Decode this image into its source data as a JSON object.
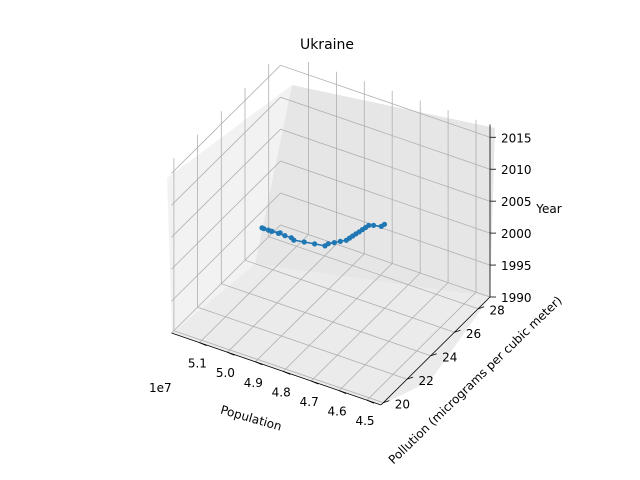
{
  "chart_data": {
    "type": "line",
    "projection": "3d",
    "title": "Ukraine",
    "xlabel": "Population",
    "ylabel": "Pollution (micrograms per cubic meter)",
    "zlabel": "Year",
    "x_offset_label": "1e7",
    "xlim": [
      4.45,
      5.2
    ],
    "ylim": [
      19.8,
      29.0
    ],
    "zlim": [
      1990,
      2017
    ],
    "x_ticks": [
      "4.5",
      "4.6",
      "4.7",
      "4.8",
      "4.9",
      "5.0",
      "5.1"
    ],
    "y_ticks": [
      "20",
      "22",
      "24",
      "26",
      "28"
    ],
    "z_ticks": [
      "1990",
      "1995",
      "2000",
      "2005",
      "2010",
      "2015"
    ],
    "grid": true,
    "series": [
      {
        "color": "#1f77b4",
        "x_unit": "1e7",
        "points": [
          {
            "year": 1990,
            "population": 5.18,
            "pollution": 28.5
          },
          {
            "year": 1991,
            "population": 5.19,
            "pollution": 28.0
          },
          {
            "year": 1992,
            "population": 5.2,
            "pollution": 27.6
          },
          {
            "year": 1993,
            "population": 5.19,
            "pollution": 27.2
          },
          {
            "year": 1994,
            "population": 5.15,
            "pollution": 26.8
          },
          {
            "year": 1995,
            "population": 5.12,
            "pollution": 26.4
          },
          {
            "year": 1996,
            "population": 5.08,
            "pollution": 26.0
          },
          {
            "year": 1997,
            "population": 5.04,
            "pollution": 25.6
          },
          {
            "year": 1998,
            "population": 5.0,
            "pollution": 25.2
          },
          {
            "year": 1999,
            "population": 4.97,
            "pollution": 24.7
          },
          {
            "year": 2000,
            "population": 4.92,
            "pollution": 24.4
          },
          {
            "year": 2001,
            "population": 4.87,
            "pollution": 24.1
          },
          {
            "year": 2002,
            "population": 4.82,
            "pollution": 23.8
          },
          {
            "year": 2003,
            "population": 4.8,
            "pollution": 23.6
          },
          {
            "year": 2004,
            "population": 4.77,
            "pollution": 23.4
          },
          {
            "year": 2005,
            "population": 4.74,
            "pollution": 23.2
          },
          {
            "year": 2006,
            "population": 4.71,
            "pollution": 23.0
          },
          {
            "year": 2007,
            "population": 4.69,
            "pollution": 22.8
          },
          {
            "year": 2008,
            "population": 4.67,
            "pollution": 22.6
          },
          {
            "year": 2009,
            "population": 4.65,
            "pollution": 22.4
          },
          {
            "year": 2010,
            "population": 4.63,
            "pollution": 22.2
          },
          {
            "year": 2011,
            "population": 4.61,
            "pollution": 22.0
          },
          {
            "year": 2012,
            "population": 4.59,
            "pollution": 21.8
          },
          {
            "year": 2013,
            "population": 4.57,
            "pollution": 21.6
          },
          {
            "year": 2014,
            "population": 4.54,
            "pollution": 21.3
          },
          {
            "year": 2015,
            "population": 4.5,
            "pollution": 21.0
          },
          {
            "year": 2016,
            "population": 4.48,
            "pollution": 20.8
          }
        ]
      }
    ]
  }
}
